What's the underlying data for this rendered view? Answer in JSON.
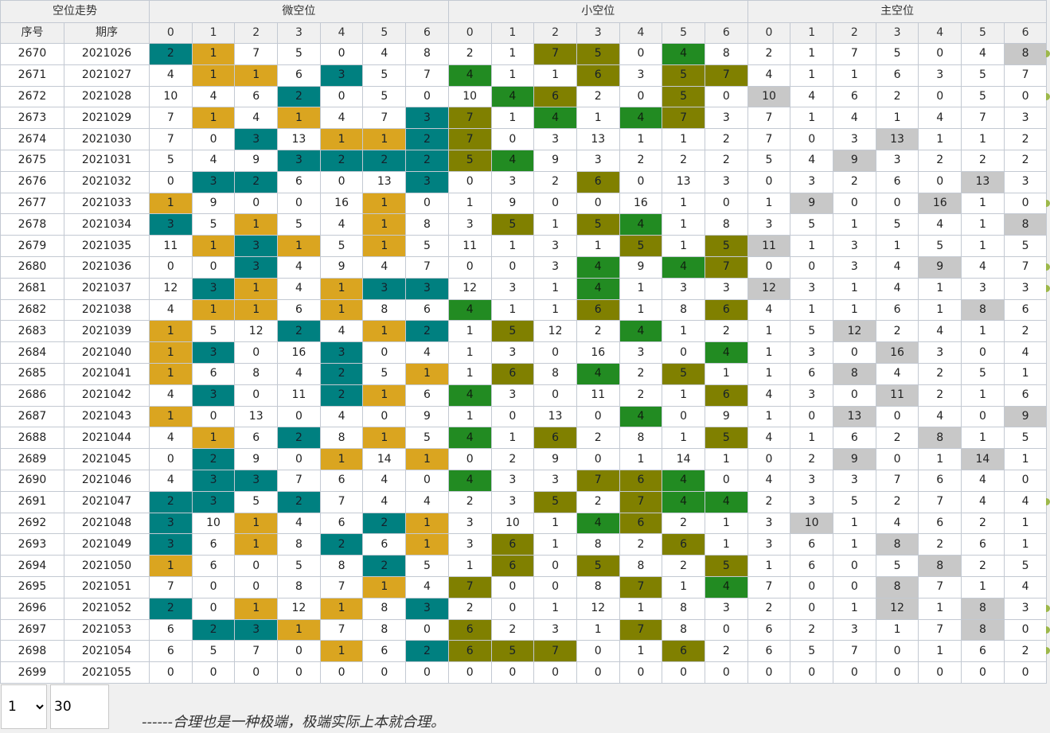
{
  "header": {
    "group_labels": [
      "空位走势",
      "微空位",
      "小空位",
      "主空位"
    ],
    "col_seq": "序号",
    "col_period": "期序",
    "digits": [
      "0",
      "1",
      "2",
      "3",
      "4",
      "5",
      "6"
    ]
  },
  "palette": {
    "teal": "#008080",
    "gold": "#daa520",
    "green": "#228b22",
    "olive": "#808000",
    "grey": "#c8c8c8"
  },
  "color_legend": "g = gold, t = teal (微空位); G = green, O = olive (小空位); x = grey (主空位); . = no fill",
  "rows": [
    {
      "seq": "2670",
      "period": "2021026",
      "values": [
        2,
        1,
        7,
        5,
        0,
        4,
        8
      ],
      "micro": "tg.....",
      "small": "..OO.G.",
      "main": "......x"
    },
    {
      "seq": "2671",
      "period": "2021027",
      "values": [
        4,
        1,
        1,
        6,
        3,
        5,
        7
      ],
      "micro": ".gg.t..",
      "small": "G..O.OO",
      "main": "......."
    },
    {
      "seq": "2672",
      "period": "2021028",
      "values": [
        10,
        4,
        6,
        2,
        0,
        5,
        0
      ],
      "micro": "...t...",
      "small": ".GO..O.",
      "main": "x......"
    },
    {
      "seq": "2673",
      "period": "2021029",
      "values": [
        7,
        1,
        4,
        1,
        4,
        7,
        3
      ],
      "micro": ".g.g..t",
      "small": "O.G.GO.",
      "main": "......."
    },
    {
      "seq": "2674",
      "period": "2021030",
      "values": [
        7,
        0,
        3,
        13,
        1,
        1,
        2
      ],
      "micro": "..t.ggt",
      "small": "O......",
      "main": "...x..."
    },
    {
      "seq": "2675",
      "period": "2021031",
      "values": [
        5,
        4,
        9,
        3,
        2,
        2,
        2
      ],
      "micro": "...tttt",
      "small": "OG.....",
      "main": "..x...."
    },
    {
      "seq": "2676",
      "period": "2021032",
      "values": [
        0,
        3,
        2,
        6,
        0,
        13,
        3
      ],
      "micro": ".tt...t",
      "small": "...O...",
      "main": ".....x."
    },
    {
      "seq": "2677",
      "period": "2021033",
      "values": [
        1,
        9,
        0,
        0,
        16,
        1,
        0
      ],
      "micro": "g....g.",
      "small": ".......",
      "main": ".x..x.."
    },
    {
      "seq": "2678",
      "period": "2021034",
      "values": [
        3,
        5,
        1,
        5,
        4,
        1,
        8
      ],
      "micro": "t.g..g.",
      "small": ".O.OG..",
      "main": "......x"
    },
    {
      "seq": "2679",
      "period": "2021035",
      "values": [
        11,
        1,
        3,
        1,
        5,
        1,
        5
      ],
      "micro": ".gtg.g.",
      "small": "....O.O",
      "main": "x......"
    },
    {
      "seq": "2680",
      "period": "2021036",
      "values": [
        0,
        0,
        3,
        4,
        9,
        4,
        7
      ],
      "micro": "..t....",
      "small": "...G.GO",
      "main": "....x.."
    },
    {
      "seq": "2681",
      "period": "2021037",
      "values": [
        12,
        3,
        1,
        4,
        1,
        3,
        3
      ],
      "micro": ".tg.gtt",
      "small": "...G...",
      "main": "x......"
    },
    {
      "seq": "2682",
      "period": "2021038",
      "values": [
        4,
        1,
        1,
        6,
        1,
        8,
        6
      ],
      "micro": ".gg.g..",
      "small": "G..O..O",
      "main": ".....x."
    },
    {
      "seq": "2683",
      "period": "2021039",
      "values": [
        1,
        5,
        12,
        2,
        4,
        1,
        2
      ],
      "micro": "g..t.gt",
      "small": ".O..G..",
      "main": "..x...."
    },
    {
      "seq": "2684",
      "period": "2021040",
      "values": [
        1,
        3,
        0,
        16,
        3,
        0,
        4
      ],
      "micro": "gt..t..",
      "small": "......G",
      "main": "...x..."
    },
    {
      "seq": "2685",
      "period": "2021041",
      "values": [
        1,
        6,
        8,
        4,
        2,
        5,
        1
      ],
      "micro": "g...t.g",
      "small": ".O.G.O.",
      "main": "..x...."
    },
    {
      "seq": "2686",
      "period": "2021042",
      "values": [
        4,
        3,
        0,
        11,
        2,
        1,
        6
      ],
      "micro": ".t..tg.",
      "small": "G.....O",
      "main": "...x..."
    },
    {
      "seq": "2687",
      "period": "2021043",
      "values": [
        1,
        0,
        13,
        0,
        4,
        0,
        9
      ],
      "micro": "g......",
      "small": "....G..",
      "main": "..x...x"
    },
    {
      "seq": "2688",
      "period": "2021044",
      "values": [
        4,
        1,
        6,
        2,
        8,
        1,
        5
      ],
      "micro": ".g.t.g.",
      "small": "G.O...O",
      "main": "....x.."
    },
    {
      "seq": "2689",
      "period": "2021045",
      "values": [
        0,
        2,
        9,
        0,
        1,
        14,
        1
      ],
      "micro": ".t..g.g",
      "small": ".......",
      "main": "..x..x."
    },
    {
      "seq": "2690",
      "period": "2021046",
      "values": [
        4,
        3,
        3,
        7,
        6,
        4,
        0
      ],
      "micro": ".tt....",
      "small": "G..OOG.",
      "main": "......."
    },
    {
      "seq": "2691",
      "period": "2021047",
      "values": [
        2,
        3,
        5,
        2,
        7,
        4,
        4
      ],
      "micro": "tt.t...",
      "small": "..O.OGG",
      "main": "......."
    },
    {
      "seq": "2692",
      "period": "2021048",
      "values": [
        3,
        10,
        1,
        4,
        6,
        2,
        1
      ],
      "micro": "t.g..tg",
      "small": "...GO..",
      "main": ".x....."
    },
    {
      "seq": "2693",
      "period": "2021049",
      "values": [
        3,
        6,
        1,
        8,
        2,
        6,
        1
      ],
      "micro": "t.g.t.g",
      "small": ".O...O.",
      "main": "...x..."
    },
    {
      "seq": "2694",
      "period": "2021050",
      "values": [
        1,
        6,
        0,
        5,
        8,
        2,
        5
      ],
      "micro": "g....t.",
      "small": ".O.O..O",
      "main": "....x.."
    },
    {
      "seq": "2695",
      "period": "2021051",
      "values": [
        7,
        0,
        0,
        8,
        7,
        1,
        4
      ],
      "micro": ".....g.",
      "small": "O...O.G",
      "main": "...x..."
    },
    {
      "seq": "2696",
      "period": "2021052",
      "values": [
        2,
        0,
        1,
        12,
        1,
        8,
        3
      ],
      "micro": "t.g.g.t",
      "small": ".......",
      "main": "...x.x."
    },
    {
      "seq": "2697",
      "period": "2021053",
      "values": [
        6,
        2,
        3,
        1,
        7,
        8,
        0
      ],
      "micro": ".ttg...",
      "small": "O...O..",
      "main": ".....x."
    },
    {
      "seq": "2698",
      "period": "2021054",
      "values": [
        6,
        5,
        7,
        0,
        1,
        6,
        2
      ],
      "micro": "....g.t",
      "small": "OOO..O.",
      "main": "......."
    },
    {
      "seq": "2699",
      "period": "2021055",
      "values": [
        0,
        0,
        0,
        0,
        0,
        0,
        0
      ],
      "micro": ".......",
      "small": ".......",
      "main": "......."
    }
  ],
  "edge_marker_color": "#9db84a",
  "edge_marker_rows": [
    0,
    2,
    7,
    10,
    11,
    21,
    26,
    27,
    28
  ],
  "footer": {
    "page_options": [
      "1"
    ],
    "page_selected": "1",
    "page_size": "30",
    "motto": "------合理也是一种极端，极端实际上本就合理。"
  }
}
